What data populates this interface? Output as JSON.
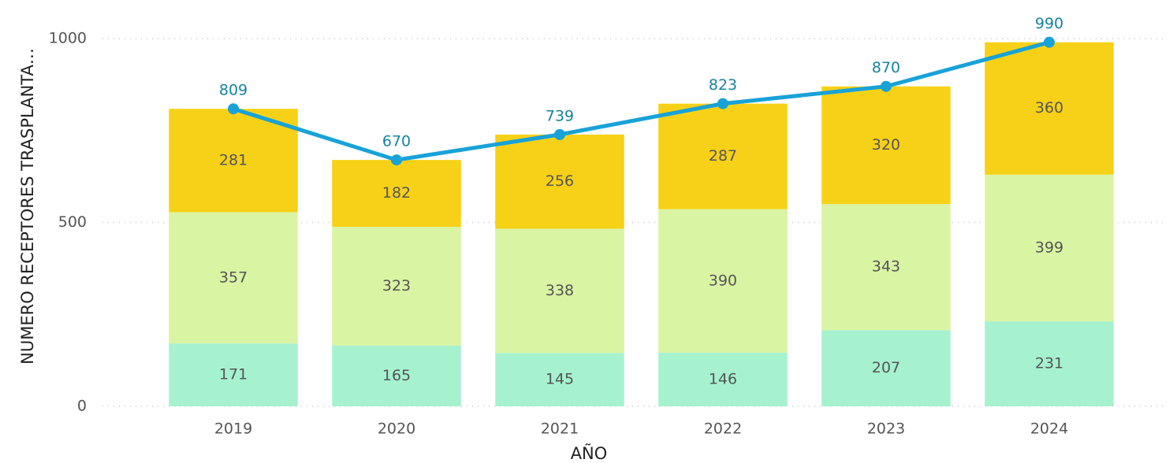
{
  "chart_data": {
    "type": "bar",
    "stacked": true,
    "x_label": "AÑO",
    "y_label": "NUMERO RECEPTORES TRASPLANTA…",
    "categories": [
      "2019",
      "2020",
      "2021",
      "2022",
      "2023",
      "2024"
    ],
    "series": [
      {
        "type": "bar",
        "color": "#a6f2cf",
        "values": [
          171,
          165,
          145,
          146,
          207,
          231
        ]
      },
      {
        "type": "bar",
        "color": "#d9f4a3",
        "values": [
          357,
          323,
          338,
          390,
          343,
          399
        ]
      },
      {
        "type": "bar",
        "color": "#f7d117",
        "values": [
          281,
          182,
          256,
          287,
          320,
          360
        ]
      },
      {
        "type": "line",
        "color": "#18a2d8",
        "label_color": "#15849f",
        "values": [
          809,
          670,
          739,
          823,
          870,
          990
        ]
      }
    ],
    "ylim": [
      0,
      1000
    ],
    "yticks": [
      0,
      500,
      1000
    ],
    "grid": true
  }
}
